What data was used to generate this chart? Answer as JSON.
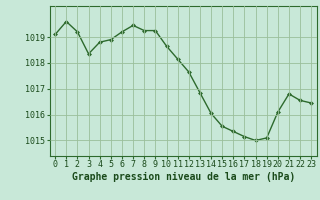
{
  "x": [
    0,
    1,
    2,
    3,
    4,
    5,
    6,
    7,
    8,
    9,
    10,
    11,
    12,
    13,
    14,
    15,
    16,
    17,
    18,
    19,
    20,
    21,
    22,
    23
  ],
  "y": [
    1019.1,
    1019.6,
    1019.2,
    1018.35,
    1018.8,
    1018.9,
    1019.2,
    1019.45,
    1019.25,
    1019.25,
    1018.65,
    1018.15,
    1017.65,
    1016.85,
    1016.05,
    1015.55,
    1015.35,
    1015.15,
    1015.0,
    1015.1,
    1016.1,
    1016.8,
    1016.55,
    1016.45
  ],
  "line_color": "#2d6a2d",
  "marker": "D",
  "marker_size": 2.0,
  "line_width": 1.0,
  "bg_color": "#c8e8d8",
  "grid_color": "#9abf9a",
  "xlabel": "Graphe pression niveau de la mer (hPa)",
  "xlabel_fontsize": 7.0,
  "xlabel_color": "#1a4a1a",
  "ylabel_ticks": [
    1015,
    1016,
    1017,
    1018,
    1019
  ],
  "ylim": [
    1014.4,
    1020.2
  ],
  "xlim": [
    -0.5,
    23.5
  ],
  "tick_fontsize": 6.0,
  "tick_color": "#1a4a1a",
  "spine_color": "#2d6a2d"
}
